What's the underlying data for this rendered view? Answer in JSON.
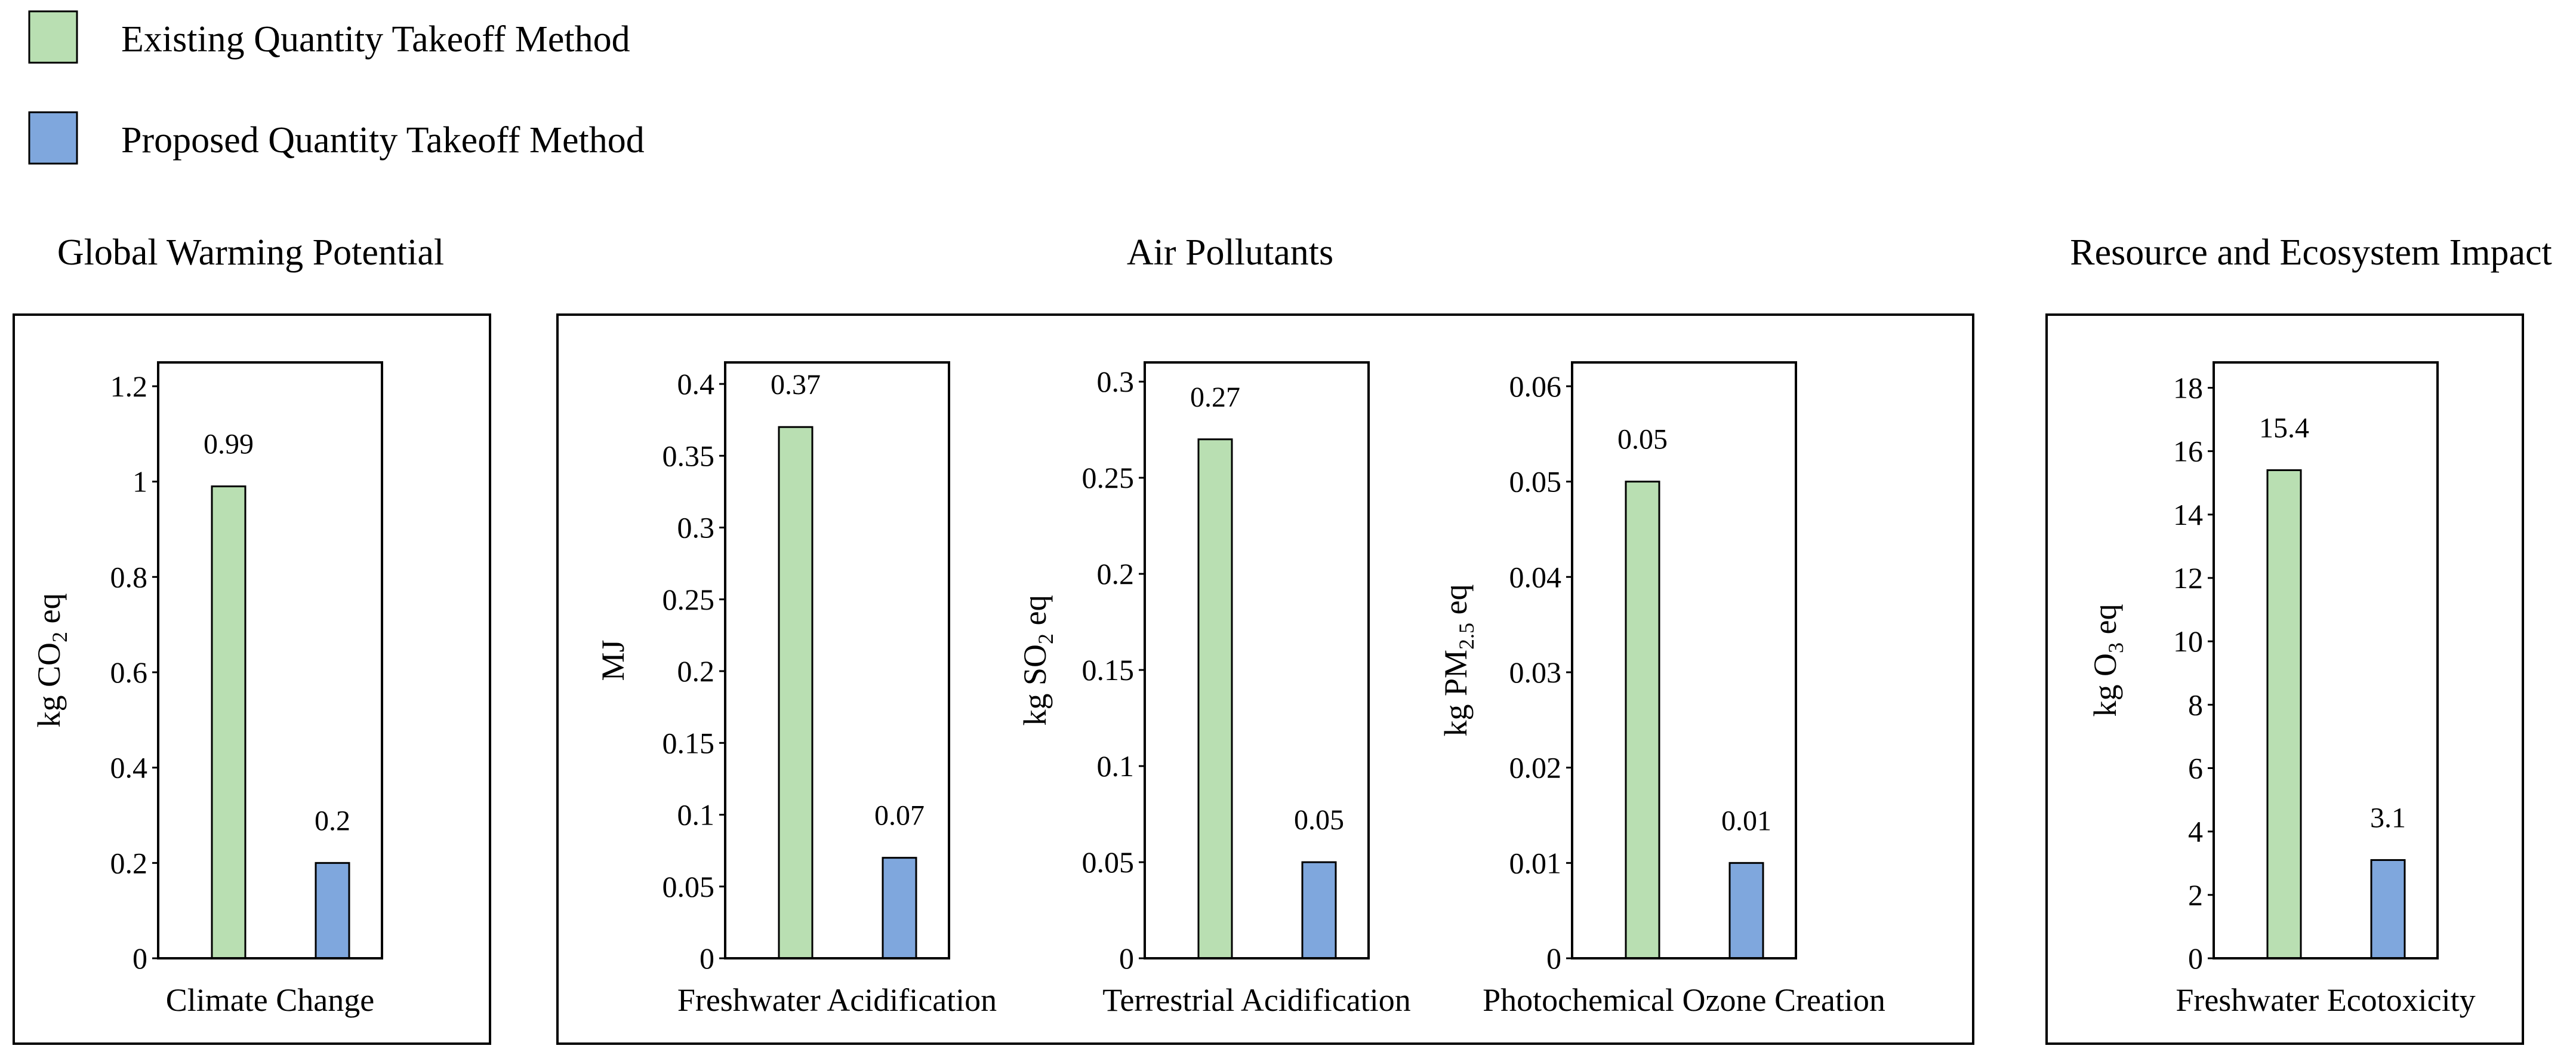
{
  "legend": {
    "items": [
      {
        "label": "Existing Quantity Takeoff Method",
        "color": "#b9dfb2"
      },
      {
        "label": "Proposed Quantity Takeoff Method",
        "color": "#7fa7dd"
      }
    ]
  },
  "groups": [
    {
      "title": "Global Warming Potential"
    },
    {
      "title": "Air Pollutants"
    },
    {
      "title": "Resource and Ecosystem Impact"
    }
  ],
  "chart_data": [
    {
      "type": "bar",
      "group": "Global Warming Potential",
      "xlabel": "Climate Change",
      "ylabel_main": "kg CO",
      "ylabel_sub": "2",
      "ylabel_tail": " eq",
      "ylim": [
        0,
        1.25
      ],
      "ticks": [
        0,
        0.2,
        0.4,
        0.6,
        0.8,
        1,
        1.2
      ],
      "tick_labels": [
        "0",
        "0.2",
        "0.4",
        "0.6",
        "0.8",
        "1",
        "1.2"
      ],
      "series": [
        {
          "name": "Existing Quantity Takeoff Method",
          "values": [
            0.99
          ],
          "labels": [
            "0.99"
          ]
        },
        {
          "name": "Proposed Quantity Takeoff Method",
          "values": [
            0.2
          ],
          "labels": [
            "0.2"
          ]
        }
      ]
    },
    {
      "type": "bar",
      "group": "Air Pollutants",
      "xlabel": "Freshwater Acidification",
      "ylabel_main": "MJ",
      "ylabel_sub": "",
      "ylabel_tail": "",
      "ylim": [
        0,
        0.415
      ],
      "ticks": [
        0,
        0.05,
        0.1,
        0.15,
        0.2,
        0.25,
        0.3,
        0.35,
        0.4
      ],
      "tick_labels": [
        "0",
        "0.05",
        "0.1",
        "0.15",
        "0.2",
        "0.25",
        "0.3",
        "0.35",
        "0.4"
      ],
      "series": [
        {
          "name": "Existing Quantity Takeoff Method",
          "values": [
            0.37
          ],
          "labels": [
            "0.37"
          ]
        },
        {
          "name": "Proposed Quantity Takeoff Method",
          "values": [
            0.07
          ],
          "labels": [
            "0.07"
          ]
        }
      ]
    },
    {
      "type": "bar",
      "group": "Air Pollutants",
      "xlabel": "Terrestrial Acidification",
      "ylabel_main": "kg SO",
      "ylabel_sub": "2",
      "ylabel_tail": " eq",
      "ylim": [
        0,
        0.31
      ],
      "ticks": [
        0,
        0.05,
        0.1,
        0.15,
        0.2,
        0.25,
        0.3
      ],
      "tick_labels": [
        "0",
        "0.05",
        "0.1",
        "0.15",
        "0.2",
        "0.25",
        "0.3"
      ],
      "series": [
        {
          "name": "Existing Quantity Takeoff Method",
          "values": [
            0.27
          ],
          "labels": [
            "0.27"
          ]
        },
        {
          "name": "Proposed Quantity Takeoff Method",
          "values": [
            0.05
          ],
          "labels": [
            "0.05"
          ]
        }
      ]
    },
    {
      "type": "bar",
      "group": "Air Pollutants",
      "xlabel": "Photochemical Ozone Creation",
      "ylabel_main": "kg PM",
      "ylabel_sub": "2.5",
      "ylabel_tail": " eq",
      "ylim": [
        0,
        0.0625
      ],
      "ticks": [
        0,
        0.01,
        0.02,
        0.03,
        0.04,
        0.05,
        0.06
      ],
      "tick_labels": [
        "0",
        "0.01",
        "0.02",
        "0.03",
        "0.04",
        "0.05",
        "0.06"
      ],
      "series": [
        {
          "name": "Existing Quantity Takeoff Method",
          "values": [
            0.05
          ],
          "labels": [
            "0.05"
          ]
        },
        {
          "name": "Proposed Quantity Takeoff Method",
          "values": [
            0.01
          ],
          "labels": [
            "0.01"
          ]
        }
      ]
    },
    {
      "type": "bar",
      "group": "Resource and Ecosystem Impact",
      "xlabel": "Freshwater Ecotoxicity",
      "ylabel_main": "kg O",
      "ylabel_sub": "3",
      "ylabel_tail": " eq",
      "ylim": [
        0,
        18.8
      ],
      "ticks": [
        0,
        2,
        4,
        6,
        8,
        10,
        12,
        14,
        16,
        18
      ],
      "tick_labels": [
        "0",
        "2",
        "4",
        "6",
        "8",
        "10",
        "12",
        "14",
        "16",
        "18"
      ],
      "series": [
        {
          "name": "Existing Quantity Takeoff Method",
          "values": [
            15.4
          ],
          "labels": [
            "15.4"
          ]
        },
        {
          "name": "Proposed Quantity Takeoff Method",
          "values": [
            3.1
          ],
          "labels": [
            "3.1"
          ]
        }
      ]
    }
  ]
}
